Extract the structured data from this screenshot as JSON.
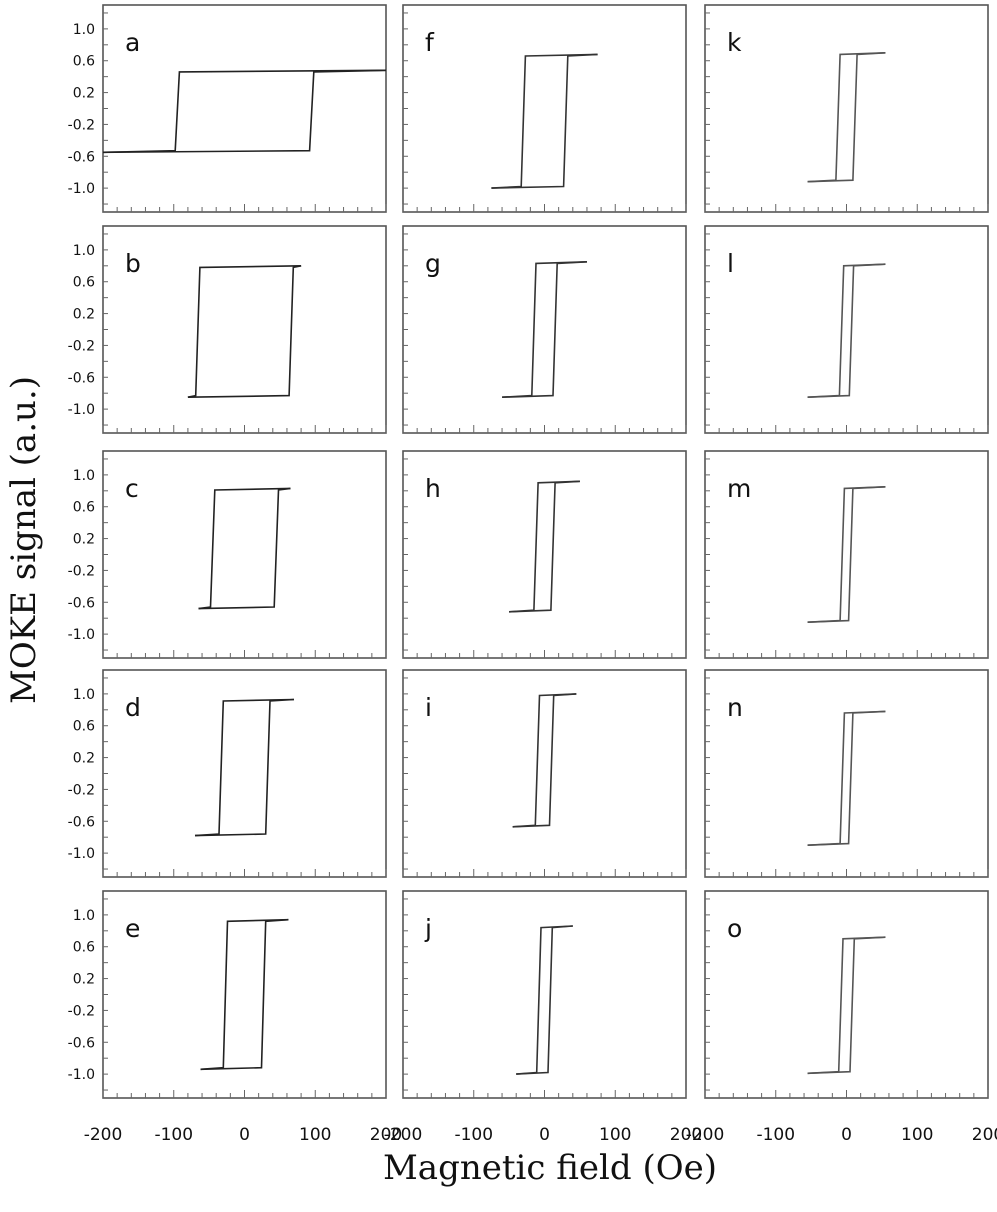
{
  "figure": {
    "xlabel": "Magnetic field (Oe)",
    "ylabel": "MOKE signal (a.u.)"
  },
  "axes": {
    "xlim": [
      -200,
      200
    ],
    "ylim": [
      -1.3,
      1.3
    ],
    "xticks": [
      -200,
      -100,
      0,
      100,
      200
    ],
    "xtick_labels": [
      "-200",
      "-100",
      "0",
      "100",
      "200"
    ],
    "yticks": [
      1.0,
      0.6,
      0.2,
      -0.2,
      -0.6,
      -1.0
    ],
    "ytick_labels": [
      "1.0",
      "0.6",
      "0.2",
      "-0.2",
      "-0.6",
      "-1.0"
    ],
    "grid": false
  },
  "chart_data": [
    {
      "type": "line",
      "label": "a",
      "x_range": [
        -200,
        200
      ],
      "coercive_field": 95,
      "m_low": -0.55,
      "m_high": 0.48,
      "line_color": "#222222"
    },
    {
      "type": "line",
      "label": "b",
      "x_range": [
        -80,
        80
      ],
      "coercive_field": 66,
      "m_low": -0.85,
      "m_high": 0.8,
      "line_color": "#222222"
    },
    {
      "type": "line",
      "label": "c",
      "x_range": [
        -65,
        65
      ],
      "coercive_field": 45,
      "m_low": -0.68,
      "m_high": 0.83,
      "line_color": "#222222"
    },
    {
      "type": "line",
      "label": "d",
      "x_range": [
        -70,
        70
      ],
      "coercive_field": 33,
      "m_low": -0.78,
      "m_high": 0.93,
      "line_color": "#222222"
    },
    {
      "type": "line",
      "label": "e",
      "x_range": [
        -62,
        62
      ],
      "coercive_field": 27,
      "m_low": -0.94,
      "m_high": 0.94,
      "line_color": "#222222"
    },
    {
      "type": "line",
      "label": "f",
      "x_range": [
        -75,
        75
      ],
      "coercive_field": 30,
      "m_low": -1.0,
      "m_high": 0.68,
      "line_color": "#333333"
    },
    {
      "type": "line",
      "label": "g",
      "x_range": [
        -60,
        60
      ],
      "coercive_field": 15,
      "m_low": -0.85,
      "m_high": 0.85,
      "line_color": "#333333"
    },
    {
      "type": "line",
      "label": "h",
      "x_range": [
        -50,
        50
      ],
      "coercive_field": 12,
      "m_low": -0.72,
      "m_high": 0.92,
      "line_color": "#333333"
    },
    {
      "type": "line",
      "label": "i",
      "x_range": [
        -45,
        45
      ],
      "coercive_field": 10,
      "m_low": -0.67,
      "m_high": 1.0,
      "line_color": "#333333"
    },
    {
      "type": "line",
      "label": "j",
      "x_range": [
        -40,
        40
      ],
      "coercive_field": 8,
      "m_low": -1.0,
      "m_high": 0.86,
      "line_color": "#333333"
    },
    {
      "type": "line",
      "label": "k",
      "x_range": [
        -55,
        55
      ],
      "coercive_field": 12,
      "m_low": -0.92,
      "m_high": 0.7,
      "line_color": "#555555"
    },
    {
      "type": "line",
      "label": "l",
      "x_range": [
        -55,
        55
      ],
      "coercive_field": 7,
      "m_low": -0.85,
      "m_high": 0.82,
      "line_color": "#555555"
    },
    {
      "type": "line",
      "label": "m",
      "x_range": [
        -55,
        55
      ],
      "coercive_field": 6,
      "m_low": -0.85,
      "m_high": 0.85,
      "line_color": "#555555"
    },
    {
      "type": "line",
      "label": "n",
      "x_range": [
        -55,
        55
      ],
      "coercive_field": 6,
      "m_low": -0.9,
      "m_high": 0.78,
      "line_color": "#555555"
    },
    {
      "type": "line",
      "label": "o",
      "x_range": [
        -55,
        55
      ],
      "coercive_field": 8,
      "m_low": -0.99,
      "m_high": 0.72,
      "line_color": "#555555"
    }
  ]
}
